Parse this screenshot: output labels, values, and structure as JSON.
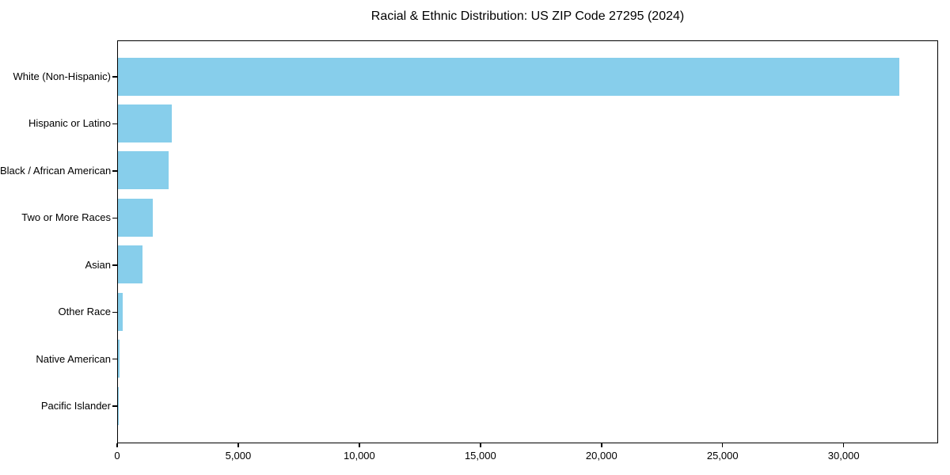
{
  "title": "Racial & Ethnic Distribution: US ZIP Code 27295 (2024)",
  "colors": {
    "bar": "#87CEEB",
    "spine": "#000000",
    "text": "#000000",
    "background": "#ffffff"
  },
  "chart_data": {
    "type": "bar",
    "orientation": "horizontal",
    "title": "Racial & Ethnic Distribution: US ZIP Code 27295 (2024)",
    "categories": [
      "White (Non-Hispanic)",
      "Hispanic or Latino",
      "Black / African American",
      "Two or More Races",
      "Asian",
      "Other Race",
      "Native American",
      "Pacific Islander"
    ],
    "values": [
      32280,
      2220,
      2090,
      1440,
      1010,
      210,
      50,
      10
    ],
    "xlabel": "",
    "ylabel": "",
    "xlim": [
      0,
      33900
    ],
    "xticks": [
      0,
      5000,
      10000,
      15000,
      20000,
      25000,
      30000
    ],
    "xtick_labels": [
      "0",
      "5,000",
      "10,000",
      "15,000",
      "20,000",
      "25,000",
      "30,000"
    ],
    "bar_color": "#87CEEB",
    "grid": false,
    "legend": null
  }
}
